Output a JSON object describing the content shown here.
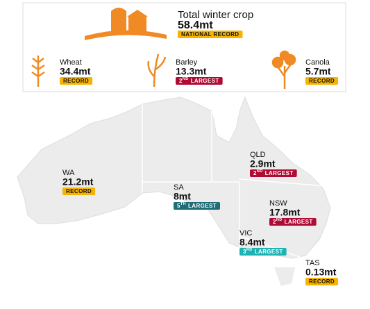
{
  "header": {
    "title": "Total winter crop",
    "value": "58.4mt",
    "badge": {
      "label": "NATIONAL RECORD"
    }
  },
  "crops": [
    {
      "name": "Wheat",
      "value": "34.4mt",
      "badge": {
        "label": "RECORD"
      }
    },
    {
      "name": "Barley",
      "value": "13.3mt",
      "badge": {
        "rank": "2",
        "suffix": "ND",
        "label": "LARGEST"
      }
    },
    {
      "name": "Canola",
      "value": "5.7mt",
      "badge": {
        "label": "RECORD"
      }
    }
  ],
  "regions": [
    {
      "name": "WA",
      "value": "21.2mt",
      "badge": {
        "label": "RECORD"
      }
    },
    {
      "name": "SA",
      "value": "8mt",
      "badge": {
        "rank": "5",
        "suffix": "TH",
        "label": "LARGEST"
      }
    },
    {
      "name": "QLD",
      "value": "2.9mt",
      "badge": {
        "rank": "2",
        "suffix": "ND",
        "label": "LARGEST"
      }
    },
    {
      "name": "NSW",
      "value": "17.8mt",
      "badge": {
        "rank": "2",
        "suffix": "ND",
        "label": "LARGEST"
      }
    },
    {
      "name": "VIC",
      "value": "8.4mt",
      "badge": {
        "rank": "3",
        "suffix": "RD",
        "label": "LARGEST"
      }
    },
    {
      "name": "TAS",
      "value": "0.13mt",
      "badge": {
        "label": "RECORD"
      }
    }
  ]
}
